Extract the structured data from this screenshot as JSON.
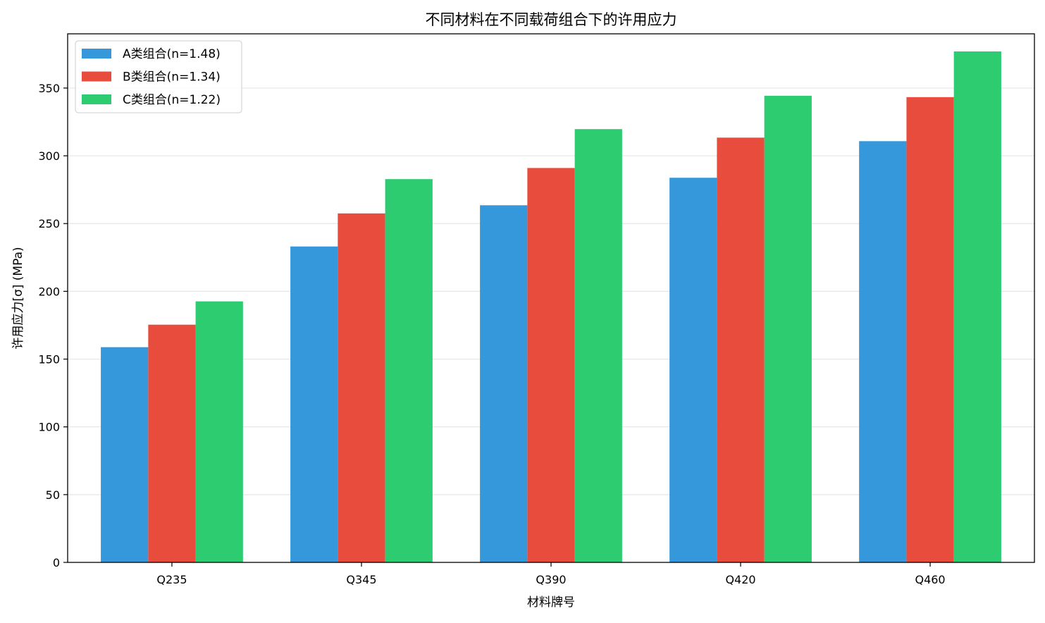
{
  "chart_data": {
    "type": "bar",
    "title": "不同材料在不同载荷组合下的许用应力",
    "xlabel": "材料牌号",
    "ylabel": "许用应力[σ] (MPa)",
    "categories": [
      "Q235",
      "Q345",
      "Q390",
      "Q420",
      "Q460"
    ],
    "series": [
      {
        "name": "A类组合(n=1.48)",
        "color": "#3498db",
        "values": [
          158.8,
          233.1,
          263.5,
          283.8,
          310.8
        ]
      },
      {
        "name": "B类组合(n=1.34)",
        "color": "#e74c3c",
        "values": [
          175.4,
          257.5,
          291.0,
          313.4,
          343.3
        ]
      },
      {
        "name": "C类组合(n=1.22)",
        "color": "#2ecc71",
        "values": [
          192.6,
          282.8,
          319.7,
          344.3,
          377.0
        ]
      }
    ],
    "ylim": [
      0,
      390
    ],
    "yticks": [
      0,
      50,
      100,
      150,
      200,
      250,
      300,
      350
    ],
    "grid": "y",
    "legend_position": "top-left"
  }
}
